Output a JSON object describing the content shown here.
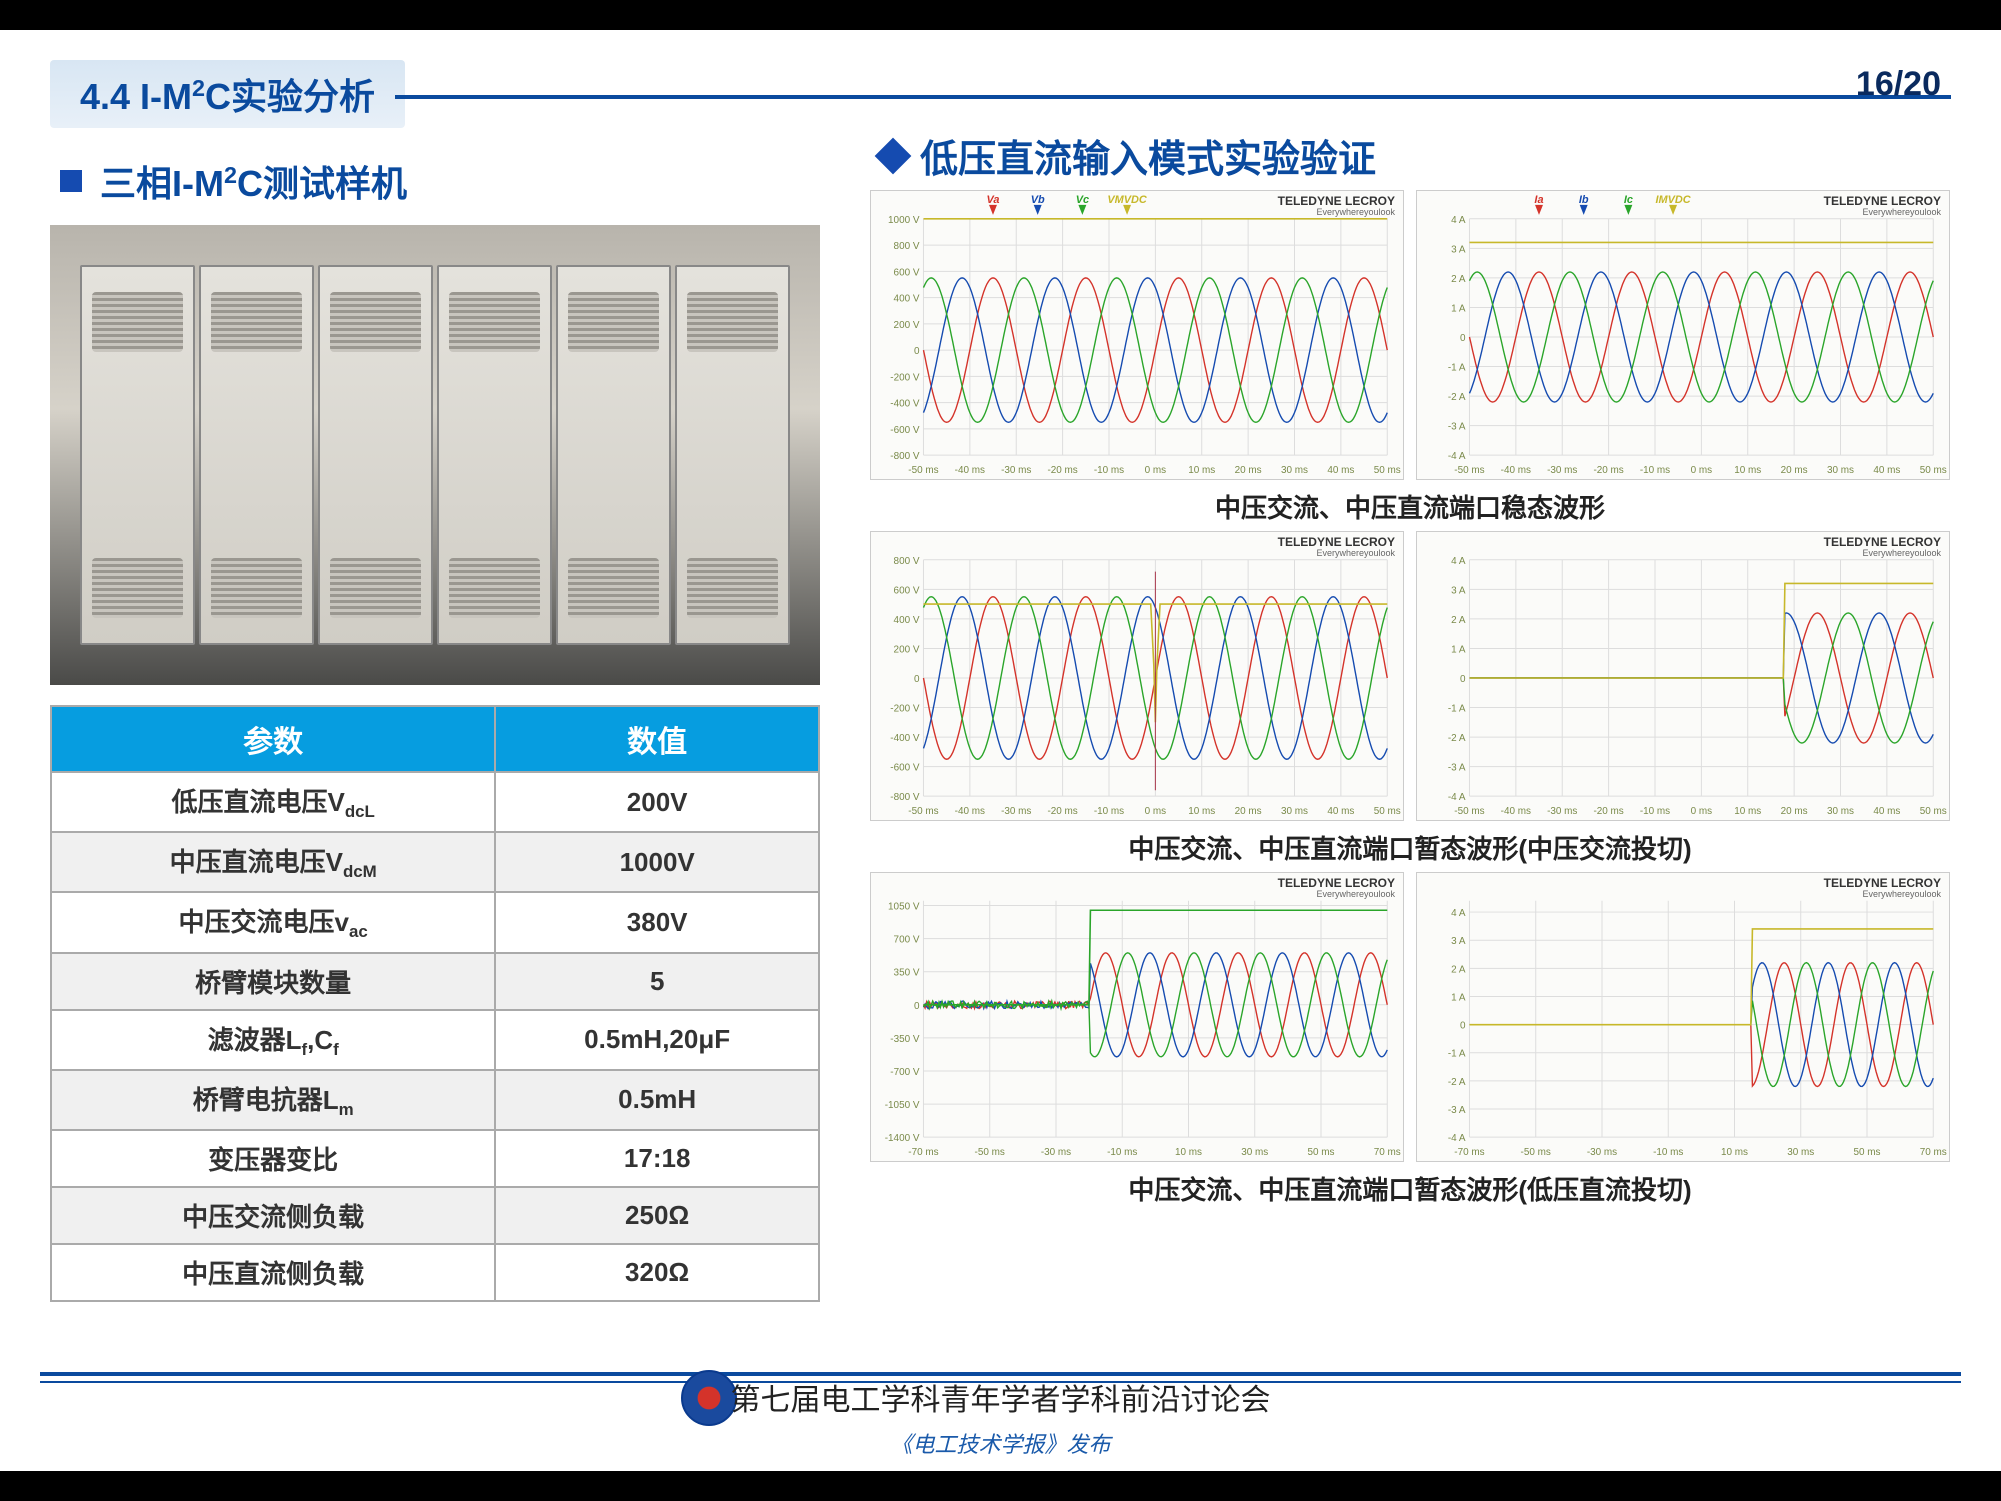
{
  "header": {
    "section": "4.4 I-M²C实验分析",
    "page": "16/20"
  },
  "left": {
    "heading": "三相I-M²C测试样机",
    "photo_alt": "测试样机机柜照片"
  },
  "table": {
    "headers": [
      "参数",
      "数值"
    ],
    "rows": [
      [
        "低压直流电压V_dcL",
        "200V"
      ],
      [
        "中压直流电压V_dcM",
        "1000V"
      ],
      [
        "中压交流电压v_ac",
        "380V"
      ],
      [
        "桥臂模块数量",
        "5"
      ],
      [
        "滤波器L_f,C_f",
        "0.5mH,20μF"
      ],
      [
        "桥臂电抗器L_m",
        "0.5mH"
      ],
      [
        "变压器变比",
        "17:18"
      ],
      [
        "中压交流侧负载",
        "250Ω"
      ],
      [
        "中压直流侧负载",
        "320Ω"
      ]
    ]
  },
  "right": {
    "heading": "低压直流输入模式实验验证",
    "captions": [
      "中压交流、中压直流端口稳态波形",
      "中压交流、中压直流端口暂态波形(中压交流投切)",
      "中压交流、中压直流端口暂态波形(低压直流投切)"
    ],
    "brand": "TELEDYNE LECROY",
    "brand_sub": "Everywhereyoulook",
    "scopes": [
      {
        "type": "voltage",
        "legend": [
          "V_a",
          "V_b",
          "V_c",
          "V_MVDC"
        ],
        "ylim": [
          -800,
          1000
        ],
        "ytick": 200,
        "xlim": [
          -50,
          50
        ],
        "xtick": 10,
        "xunit": "ms",
        "dc_level": 1000,
        "phases": {
          "amp": 550,
          "cycles": 5,
          "colors": [
            "#d4332a",
            "#154bb0",
            "#2aa52a"
          ],
          "dc_color": "#c7b82a"
        }
      },
      {
        "type": "current",
        "legend": [
          "I_a",
          "I_b",
          "I_c",
          "I_MVDC"
        ],
        "ylim": [
          -4,
          4
        ],
        "ytick": 1,
        "xlim": [
          -50,
          50
        ],
        "xtick": 10,
        "xunit": "ms",
        "yunit": "A",
        "dc_level": 3.2,
        "phases": {
          "amp": 2.2,
          "cycles": 5,
          "colors": [
            "#d4332a",
            "#154bb0",
            "#2aa52a"
          ],
          "dc_color": "#c7b82a"
        }
      },
      {
        "type": "voltage_transient",
        "transition": 0,
        "ylim": [
          -800,
          800
        ],
        "ytick": 200,
        "xlim": [
          -50,
          50
        ],
        "xtick": 10,
        "xunit": "ms",
        "dc_level": 500,
        "spike": true,
        "phases": {
          "amp": 550,
          "cycles": 5,
          "colors": [
            "#d4332a",
            "#154bb0",
            "#2aa52a"
          ],
          "dc_color": "#c7b82a"
        }
      },
      {
        "type": "current_transient",
        "transition": 18,
        "ylim": [
          -4,
          4
        ],
        "ytick": 1,
        "xlim": [
          -50,
          50
        ],
        "xtick": 10,
        "xunit": "ms",
        "yunit": "A",
        "dc_level": 3.2,
        "before_level": 0,
        "phases": {
          "amp": 2.2,
          "cycles": 5,
          "colors": [
            "#d4332a",
            "#154bb0",
            "#2aa52a"
          ],
          "dc_color": "#c7b82a"
        }
      },
      {
        "type": "voltage_transient2",
        "transition": -20,
        "ylim": [
          -1400,
          1100
        ],
        "ytick": 350,
        "xlim": [
          -70,
          70
        ],
        "xtick": 20,
        "xunit": "ms",
        "dc_level": 1000,
        "noise_before": true,
        "phases": {
          "amp": 550,
          "cycles": 7,
          "colors": [
            "#d4332a",
            "#154bb0",
            "#2aa52a"
          ],
          "dc_color": "#2aa52a"
        }
      },
      {
        "type": "current_transient2",
        "transition": 15,
        "ylim": [
          -4,
          4.4
        ],
        "ytick": 1,
        "xlim": [
          -70,
          70
        ],
        "xtick": 20,
        "xunit": "ms",
        "yunit": "A",
        "dc_level": 3.4,
        "before_level": 0,
        "phases": {
          "amp": 2.2,
          "cycles": 7,
          "colors": [
            "#d4332a",
            "#154bb0",
            "#2aa52a"
          ],
          "dc_color": "#c7b82a"
        }
      }
    ]
  },
  "footer": {
    "conference": "第七届电工学科青年学者学科前沿讨论会",
    "journal": "《电工技术学报》发布"
  },
  "colors": {
    "primary": "#0a4a9e",
    "table_header": "#069de0",
    "phase_a": "#d4332a",
    "phase_b": "#154bb0",
    "phase_c": "#2aa52a",
    "dc": "#c7b82a"
  }
}
